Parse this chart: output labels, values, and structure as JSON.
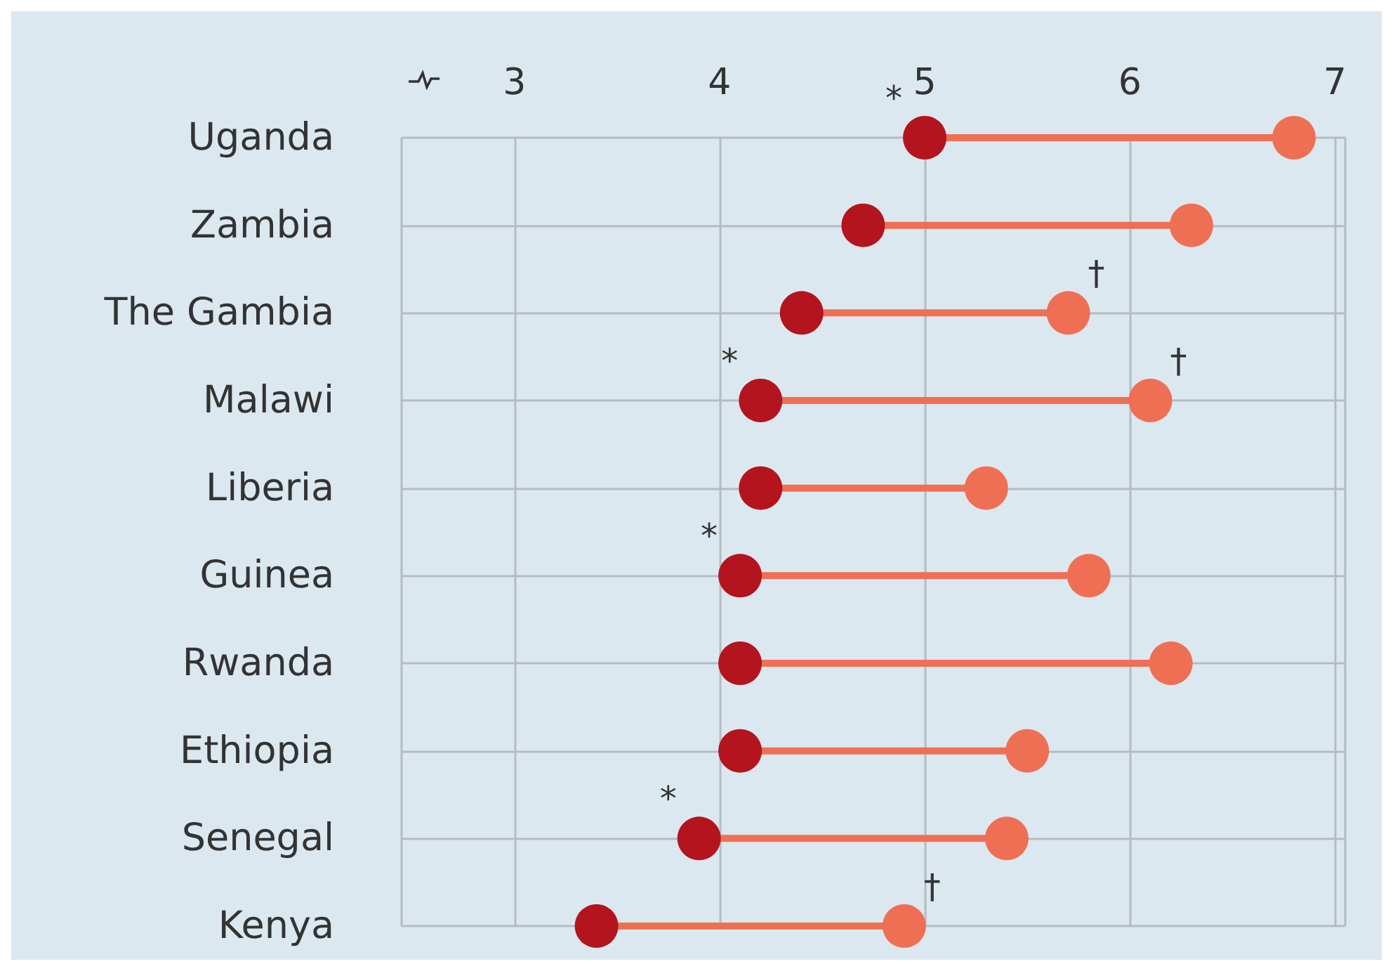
{
  "chart_data": {
    "type": "lollipop",
    "orientation": "horizontal",
    "categories": [
      "Uganda",
      "Zambia",
      "The Gambia",
      "Malawi",
      "Liberia",
      "Guinea",
      "Rwanda",
      "Ethiopia",
      "Senegal",
      "Kenya"
    ],
    "series": [
      {
        "type": "scatter",
        "color": "#b3141e",
        "values": [
          5.0,
          4.7,
          4.4,
          4.2,
          4.2,
          4.1,
          4.1,
          4.1,
          3.9,
          3.4
        ]
      },
      {
        "type": "scatter",
        "color": "#ef6f55",
        "values": [
          6.8,
          6.3,
          5.7,
          6.1,
          5.3,
          5.8,
          6.2,
          5.5,
          5.4,
          4.9
        ]
      }
    ],
    "xlim": [
      2.45,
      7.05
    ],
    "xticks": [
      3,
      4,
      5,
      6,
      7
    ],
    "grid": true,
    "marker": "circle",
    "annotations": [
      {
        "text": "*",
        "x": 5.0,
        "y": "Uganda"
      },
      {
        "text": "†",
        "x": 5.7,
        "y": "The Gambia"
      },
      {
        "text": "*",
        "x": 4.2,
        "y": "Malawi"
      },
      {
        "text": "†",
        "x": 6.1,
        "y": "Malawi"
      },
      {
        "text": "*",
        "x": 4.1,
        "y": "Guinea"
      },
      {
        "text": "*",
        "x": 3.9,
        "y": "Senegal"
      },
      {
        "text": "†",
        "x": 4.9,
        "y": "Kenya"
      }
    ]
  }
}
